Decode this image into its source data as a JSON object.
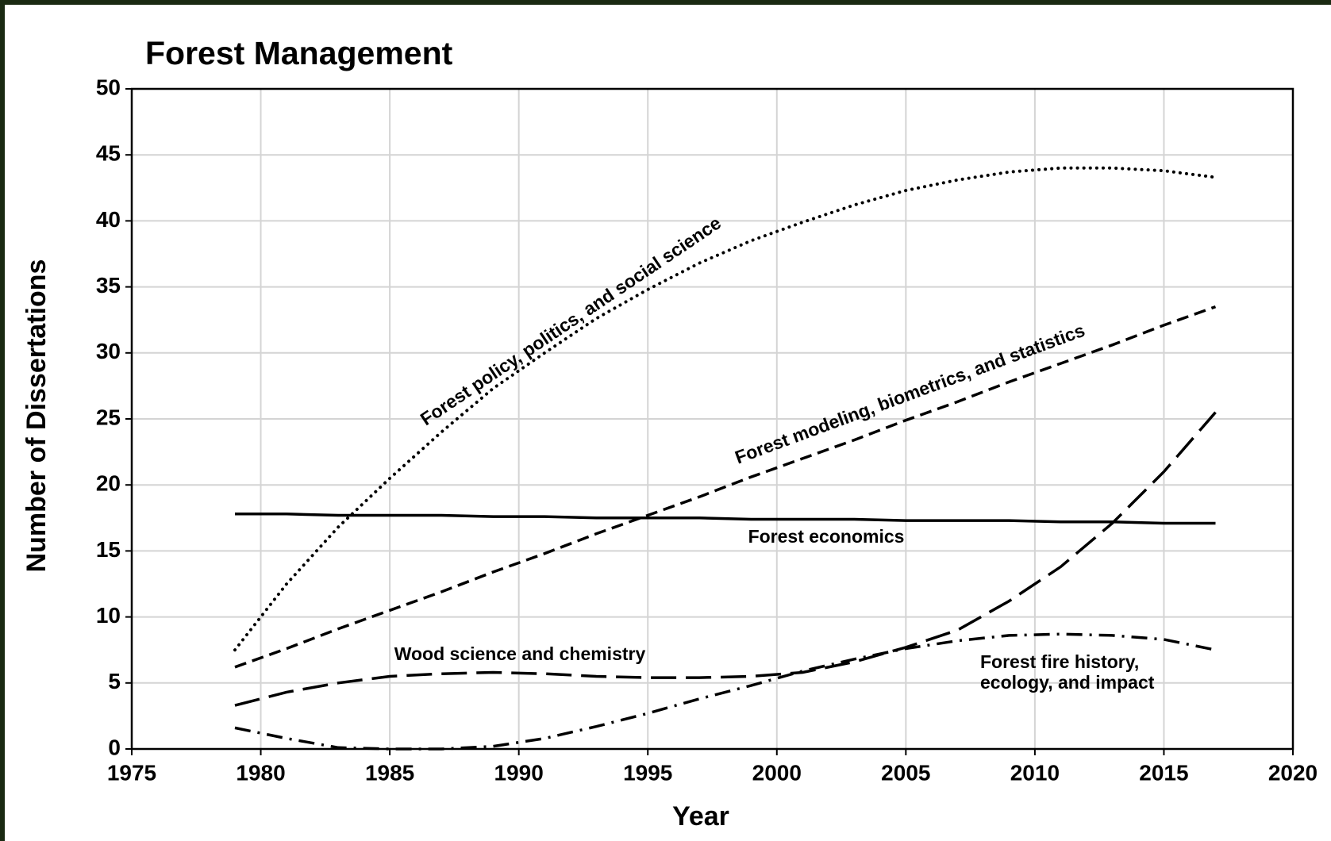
{
  "chart_data": {
    "type": "line",
    "title": "Forest Management",
    "xlabel": "Year",
    "ylabel": "Number of Dissertations",
    "x": [
      1979,
      1981,
      1983,
      1985,
      1987,
      1989,
      1991,
      1993,
      1995,
      1997,
      1999,
      2001,
      2003,
      2005,
      2007,
      2009,
      2011,
      2013,
      2015,
      2017
    ],
    "series": [
      {
        "name": "Forest policy, politics, and social science",
        "color": "#000000",
        "style": "dotted",
        "values": [
          7.5,
          12.5,
          16.8,
          20.5,
          24.0,
          27.3,
          30.0,
          32.6,
          34.8,
          36.8,
          38.5,
          39.9,
          41.2,
          42.3,
          43.1,
          43.7,
          44.0,
          44.0,
          43.8,
          43.3
        ]
      },
      {
        "name": "Forest modeling, biometrics, and statistics",
        "color": "#000000",
        "style": "dashed",
        "values": [
          6.2,
          7.6,
          9.1,
          10.5,
          11.9,
          13.4,
          14.8,
          16.3,
          17.7,
          19.1,
          20.6,
          22.0,
          23.4,
          24.9,
          26.3,
          27.8,
          29.2,
          30.6,
          32.1,
          33.5
        ]
      },
      {
        "name": "Forest economics",
        "color": "#000000",
        "style": "solid",
        "values": [
          17.8,
          17.8,
          17.7,
          17.7,
          17.7,
          17.6,
          17.6,
          17.5,
          17.5,
          17.5,
          17.4,
          17.4,
          17.4,
          17.3,
          17.3,
          17.3,
          17.2,
          17.2,
          17.1,
          17.1
        ]
      },
      {
        "name": "Wood science and chemistry",
        "color": "#000000",
        "style": "longdash",
        "values": [
          3.3,
          4.3,
          5.0,
          5.5,
          5.7,
          5.8,
          5.7,
          5.5,
          5.4,
          5.4,
          5.5,
          5.8,
          6.6,
          7.7,
          9.0,
          11.2,
          13.8,
          17.1,
          21.0,
          25.5
        ]
      },
      {
        "name": "Forest fire history, ecology, and impact",
        "color": "#000000",
        "style": "dashdot",
        "values": [
          1.6,
          0.8,
          0.1,
          0,
          0,
          0.2,
          0.8,
          1.7,
          2.7,
          3.8,
          4.8,
          5.9,
          6.8,
          7.6,
          8.2,
          8.6,
          8.7,
          8.6,
          8.3,
          7.5
        ]
      }
    ],
    "annotations": [
      "Forest policy, politics, and social science",
      "Forest modeling, biometrics, and statistics",
      "Forest economics",
      "Wood science and chemistry",
      "Forest fire history,",
      "ecology, and impact"
    ],
    "xlim": [
      1975,
      2020
    ],
    "xticks": [
      1975,
      1980,
      1985,
      1990,
      1995,
      2000,
      2005,
      2010,
      2015,
      2020
    ],
    "ylim": [
      0,
      50
    ],
    "yticks": [
      0,
      5,
      10,
      15,
      20,
      25,
      30,
      35,
      40,
      45,
      50
    ],
    "grid": true
  }
}
